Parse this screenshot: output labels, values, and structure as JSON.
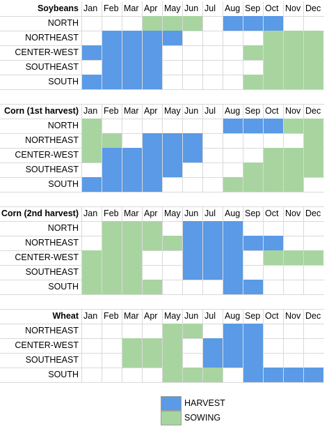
{
  "legend": [
    {
      "label": "HARVEST",
      "key": "H"
    },
    {
      "label": "SOWING",
      "key": "S"
    }
  ],
  "chart_data": {
    "type": "heatmap",
    "colors": {
      "H": "#5a9ae6",
      "S": "#a8d4a0",
      "border": "#d9d9d9"
    },
    "months": [
      "Jan",
      "Feb",
      "Mar",
      "Apr",
      "May",
      "Jun",
      "Jul",
      "Aug",
      "Sep",
      "Oct",
      "Nov",
      "Dec"
    ],
    "crops": [
      {
        "title": "Soybeans",
        "rows": [
          {
            "region": "NORTH",
            "cells": [
              "",
              "",
              "",
              "S",
              "S",
              "S",
              "",
              "H",
              "H",
              "H",
              "",
              ""
            ]
          },
          {
            "region": "NORTHEAST",
            "cells": [
              "",
              "H",
              "H",
              "H",
              "H",
              "",
              "",
              "",
              "",
              "S",
              "S",
              "S"
            ]
          },
          {
            "region": "CENTER-WEST",
            "cells": [
              "H",
              "H",
              "H",
              "H",
              "",
              "",
              "",
              "",
              "S",
              "S",
              "S",
              "S"
            ]
          },
          {
            "region": "SOUTHEAST",
            "cells": [
              "",
              "H",
              "H",
              "H",
              "",
              "",
              "",
              "",
              "",
              "S",
              "S",
              "S"
            ]
          },
          {
            "region": "SOUTH",
            "cells": [
              "H",
              "H",
              "H",
              "H",
              "",
              "",
              "",
              "",
              "S",
              "S",
              "S",
              "S"
            ]
          }
        ]
      },
      {
        "title": "Corn (1st harvest)",
        "rows": [
          {
            "region": "NORTH",
            "cells": [
              "S",
              "",
              "",
              "",
              "",
              "",
              "",
              "H",
              "H",
              "H",
              "S",
              "S"
            ]
          },
          {
            "region": "NORTHEAST",
            "cells": [
              "S",
              "S",
              "",
              "H",
              "H",
              "H",
              "",
              "",
              "",
              "",
              "",
              "S"
            ]
          },
          {
            "region": "CENTER-WEST",
            "cells": [
              "S",
              "H",
              "H",
              "H",
              "H",
              "H",
              "",
              "",
              "",
              "S",
              "S",
              "S"
            ]
          },
          {
            "region": "SOUTHEAST",
            "cells": [
              "",
              "H",
              "H",
              "H",
              "H",
              "",
              "",
              "",
              "S",
              "S",
              "S",
              "S"
            ]
          },
          {
            "region": "SOUTH",
            "cells": [
              "H",
              "H",
              "H",
              "H",
              "",
              "",
              "",
              "S",
              "S",
              "S",
              "S",
              ""
            ]
          }
        ]
      },
      {
        "title": "Corn (2nd harvest)",
        "rows": [
          {
            "region": "NORTH",
            "cells": [
              "",
              "S",
              "S",
              "S",
              "",
              "H",
              "H",
              "H",
              "",
              "",
              "",
              ""
            ]
          },
          {
            "region": "NORTHEAST",
            "cells": [
              "",
              "S",
              "S",
              "S",
              "S",
              "H",
              "H",
              "H",
              "H",
              "H",
              "",
              ""
            ]
          },
          {
            "region": "CENTER-WEST",
            "cells": [
              "S",
              "S",
              "S",
              "",
              "",
              "H",
              "H",
              "H",
              "",
              "S",
              "S",
              "S"
            ]
          },
          {
            "region": "SOUTHEAST",
            "cells": [
              "S",
              "S",
              "S",
              "",
              "",
              "H",
              "H",
              "H",
              "",
              "",
              "",
              ""
            ]
          },
          {
            "region": "SOUTH",
            "cells": [
              "S",
              "S",
              "S",
              "S",
              "",
              "",
              "",
              "H",
              "H",
              "",
              "",
              ""
            ]
          }
        ]
      },
      {
        "title": "Wheat",
        "rows": [
          {
            "region": "NORTHEAST",
            "cells": [
              "",
              "",
              "",
              "",
              "S",
              "S",
              "",
              "H",
              "H",
              "",
              "",
              ""
            ]
          },
          {
            "region": "CENTER-WEST",
            "cells": [
              "",
              "",
              "S",
              "S",
              "S",
              "",
              "H",
              "H",
              "H",
              "",
              "",
              ""
            ]
          },
          {
            "region": "SOUTHEAST",
            "cells": [
              "",
              "",
              "S",
              "S",
              "S",
              "",
              "H",
              "H",
              "H",
              "",
              "",
              ""
            ]
          },
          {
            "region": "SOUTH",
            "cells": [
              "",
              "",
              "",
              "",
              "S",
              "S",
              "S",
              "",
              "H",
              "H",
              "H",
              "H"
            ]
          }
        ]
      }
    ]
  }
}
